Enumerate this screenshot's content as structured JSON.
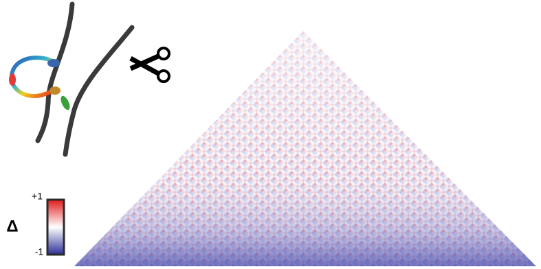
{
  "colorbar": {
    "symbol": "Δ",
    "max_label": "+1",
    "min_label": "-1"
  }
}
